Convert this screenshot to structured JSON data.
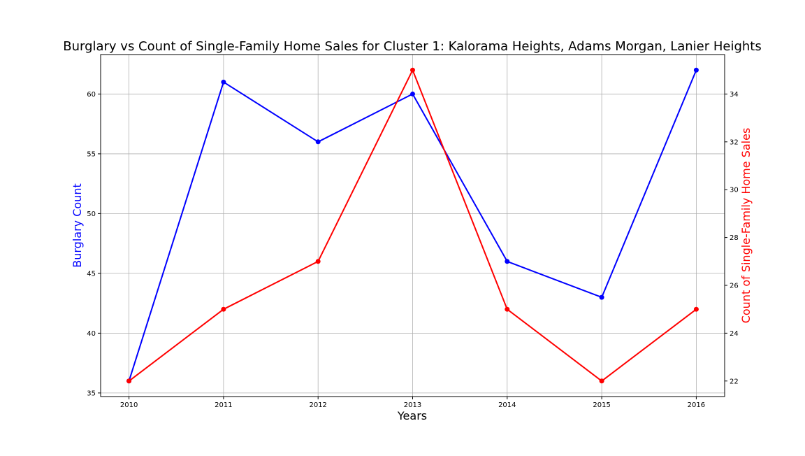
{
  "chart_data": {
    "type": "line",
    "title": "Burglary vs Count of Single-Family Home Sales for Cluster 1: Kalorama Heights, Adams Morgan, Lanier Heights",
    "xlabel": "Years",
    "x": [
      "2010",
      "2011",
      "2012",
      "2013",
      "2014",
      "2015",
      "2016"
    ],
    "xlim": [
      2009.7,
      2016.3
    ],
    "grid": true,
    "legend": "none",
    "series": [
      {
        "axis": "left",
        "color": "#0000ff",
        "values": [
          36,
          61,
          56,
          60,
          46,
          43,
          62
        ]
      },
      {
        "axis": "right",
        "color": "#ff0000",
        "values": [
          22,
          25,
          27,
          35,
          25,
          22,
          25
        ]
      }
    ],
    "y_left": {
      "label": "Burglary Count",
      "color": "#0000ff",
      "ticks": [
        35,
        40,
        45,
        50,
        55,
        60
      ],
      "range": [
        34.7,
        63.3
      ]
    },
    "y_right": {
      "label": "Count of Single-Family Home Sales",
      "color": "#ff0000",
      "ticks": [
        22,
        24,
        26,
        28,
        30,
        32,
        34
      ],
      "range": [
        21.35,
        35.65
      ]
    }
  }
}
